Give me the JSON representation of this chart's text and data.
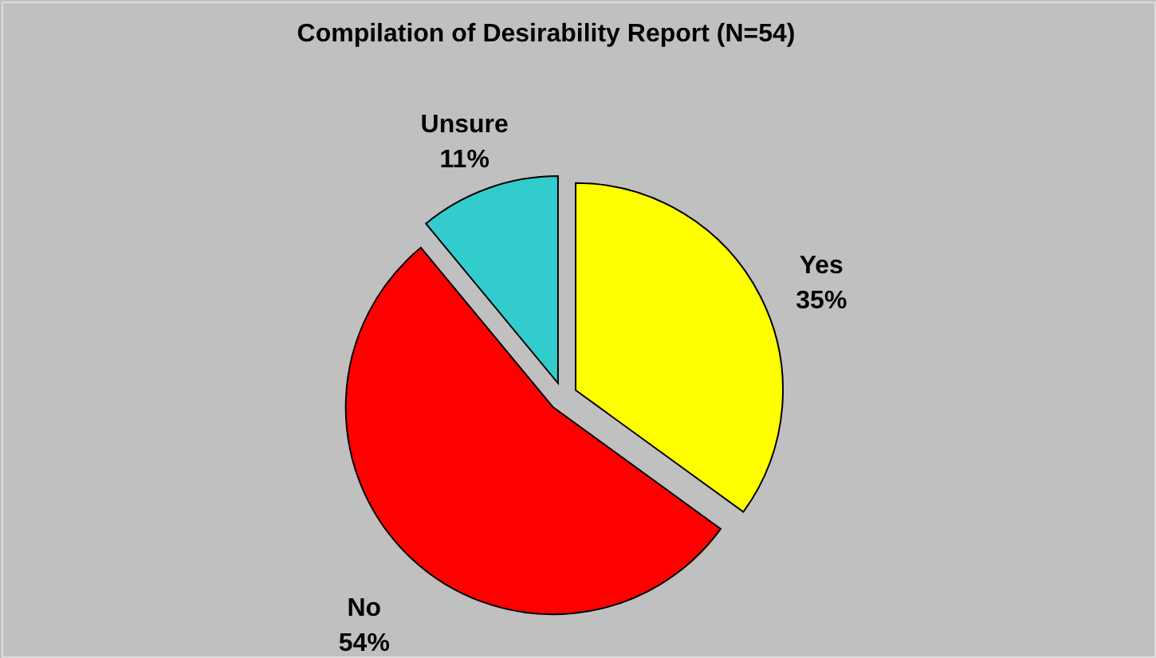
{
  "chart_data": {
    "type": "pie",
    "title": "Compilation of Desirability Report (N=54)",
    "categories": [
      "Yes",
      "No",
      "Unsure"
    ],
    "values": [
      35,
      54,
      11
    ],
    "value_labels": [
      "35%",
      "54%",
      "11%"
    ],
    "colors": [
      "#ffff00",
      "#ff0000",
      "#33cccc"
    ]
  }
}
